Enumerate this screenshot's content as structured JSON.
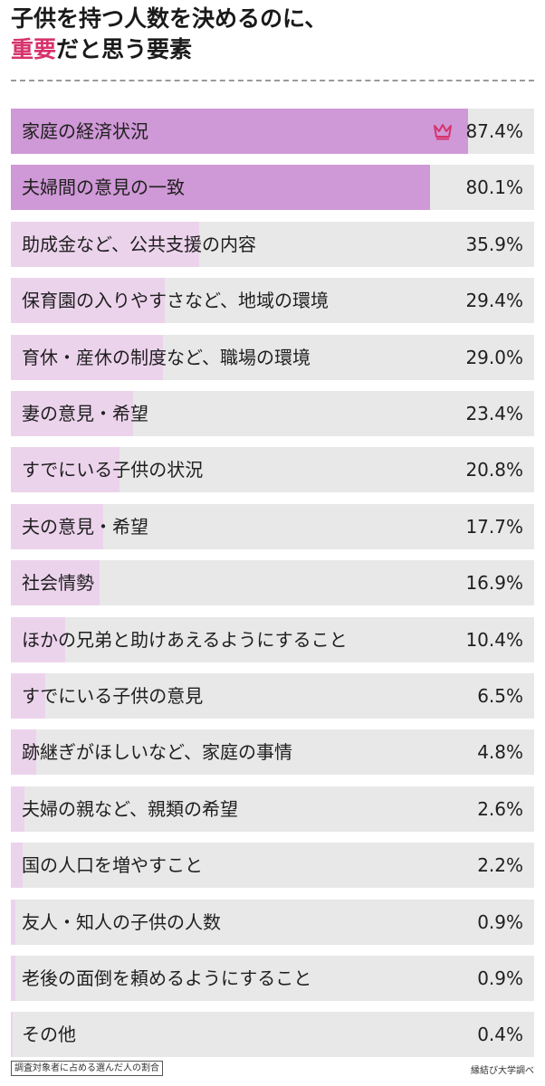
{
  "title": {
    "line1": "子供を持つ人数を決めるのに、",
    "line2_accent": "重要",
    "line2_rest": "だと思う要素"
  },
  "colors": {
    "accent": "#d6336c",
    "top_bar_fill": "#cf98d6",
    "bar_fill": "#ecd3ec",
    "bar_track": "#e8e8e8"
  },
  "chart_data": {
    "type": "bar",
    "orientation": "horizontal",
    "unit": "%",
    "xlim": [
      0,
      100
    ],
    "categories": [
      "家庭の経済状況",
      "夫婦間の意見の一致",
      "助成金など、公共支援の内容",
      "保育園の入りやすさなど、地域の環境",
      "育休・産休の制度など、職場の環境",
      "妻の意見・希望",
      "すでにいる子供の状況",
      "夫の意見・希望",
      "社会情勢",
      "ほかの兄弟と助けあえるようにすること",
      "すでにいる子供の意見",
      "跡継ぎがほしいなど、家庭の事情",
      "夫婦の親など、親類の希望",
      "国の人口を増やすこと",
      "友人・知人の子供の人数",
      "老後の面倒を頼めるようにすること",
      "その他"
    ],
    "values": [
      87.4,
      80.1,
      35.9,
      29.4,
      29.0,
      23.4,
      20.8,
      17.7,
      16.9,
      10.4,
      6.5,
      4.8,
      2.6,
      2.2,
      0.9,
      0.9,
      0.4
    ],
    "value_labels": [
      "87.4%",
      "80.1%",
      "35.9%",
      "29.4%",
      "29.0%",
      "23.4%",
      "20.8%",
      "17.7%",
      "16.9%",
      "10.4%",
      "6.5%",
      "4.8%",
      "2.6%",
      "2.2%",
      "0.9%",
      "0.9%",
      "0.4%"
    ],
    "highlighted_count": 2,
    "top_marker_icon": "crown-icon"
  },
  "footer": {
    "note": "調査対象者に占める選んだ人の割合",
    "source": "縁結び大学調べ"
  }
}
